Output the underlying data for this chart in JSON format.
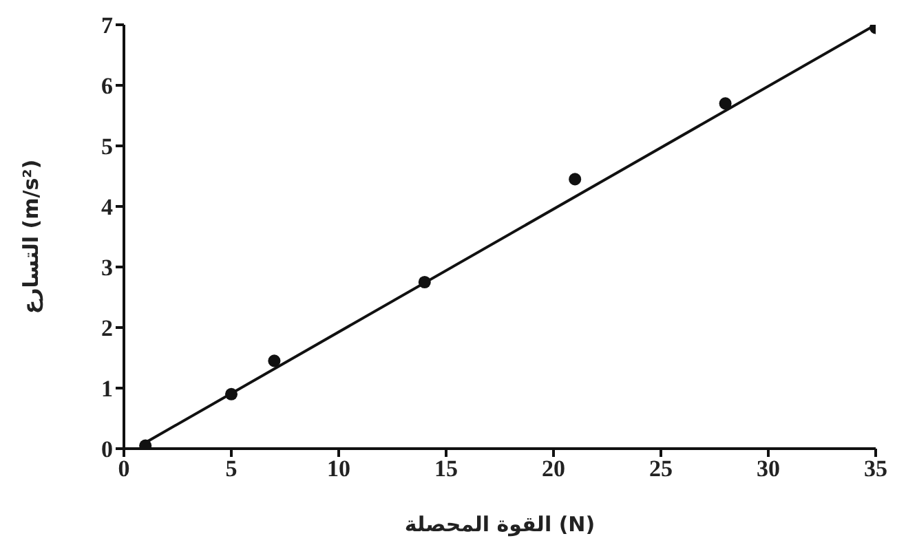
{
  "chart_data": {
    "type": "scatter",
    "xlabel": "القوة المحصلة (N)",
    "ylabel": "التسارع (m/s²)",
    "xlim": [
      0,
      35
    ],
    "xticks": [
      0,
      5,
      10,
      15,
      20,
      25,
      30,
      35
    ],
    "ylim": [
      0,
      7
    ],
    "yticks": [
      0,
      1,
      2,
      3,
      4,
      5,
      6,
      7
    ],
    "grid": false,
    "marker": "circle",
    "series": [
      {
        "color": "#111111",
        "x": [
          1,
          5,
          7,
          14,
          21,
          28,
          35
        ],
        "values": [
          0.05,
          0.9,
          1.45,
          2.75,
          4.45,
          5.7,
          6.95
        ]
      },
      {
        "type": "line",
        "color": "#111111",
        "x": [
          1,
          35
        ],
        "values": [
          0.1,
          7.0
        ],
        "line_style": "solid",
        "marker": "none"
      }
    ]
  }
}
